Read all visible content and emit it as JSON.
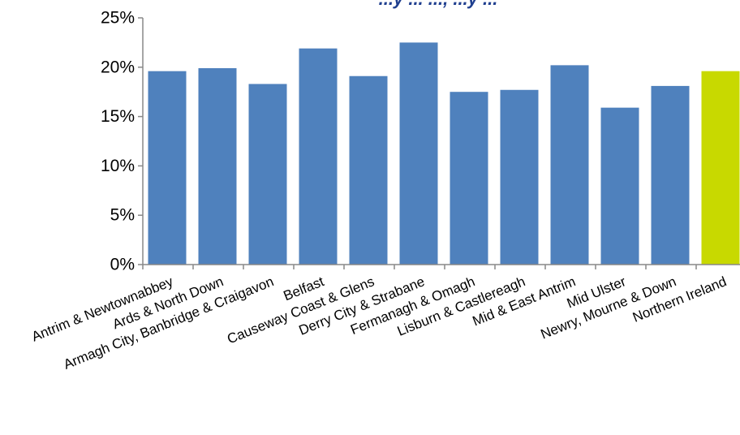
{
  "chart_data": {
    "type": "bar",
    "title": "...y ... ..., ...y ...",
    "xlabel": "",
    "ylabel": "",
    "ylim": [
      0,
      0.25
    ],
    "y_ticks": [
      0,
      0.05,
      0.1,
      0.15,
      0.2,
      0.25
    ],
    "y_tick_labels": [
      "0%",
      "5%",
      "10%",
      "15%",
      "20%",
      "25%"
    ],
    "grid": false,
    "legend": "none",
    "categories": [
      "Antrim & Newtownabbey",
      "Ards & North Down",
      "Armagh City, Banbridge & Craigavon",
      "Belfast",
      "Causeway Coast & Glens",
      "Derry City & Strabane",
      "Fermanagh & Omagh",
      "Lisburn & Castlereagh",
      "Mid & East Antrim",
      "Mid Ulster",
      "Newry, Mourne & Down",
      "Northern Ireland"
    ],
    "values": [
      0.196,
      0.199,
      0.183,
      0.219,
      0.191,
      0.225,
      0.175,
      0.177,
      0.202,
      0.159,
      0.181,
      0.196
    ],
    "colors": {
      "bar": "#4f81bd",
      "highlight": "#c8d900",
      "axis": "#888888",
      "title": "#1f3f8f"
    },
    "highlight_category": "Northern Ireland"
  }
}
